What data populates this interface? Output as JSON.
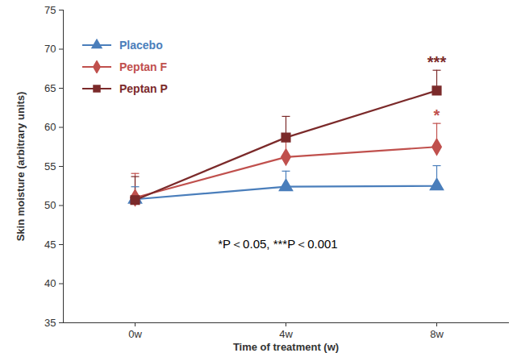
{
  "chart_data": {
    "type": "line",
    "x_label": "Time of treatment (w)",
    "y_label": "Skin moisture (arbitrary units)",
    "categories": [
      "0w",
      "4w",
      "8w"
    ],
    "ylim": [
      35,
      75
    ],
    "yticks": [
      35,
      40,
      45,
      50,
      55,
      60,
      65,
      70,
      75
    ],
    "legend": "top-left",
    "annotations": [
      "*P＜0.05, ***P＜0.001"
    ],
    "series": [
      {
        "name": "Placebo",
        "color": "#4a7ebb",
        "marker": "triangle",
        "values": [
          50.8,
          52.4,
          52.5
        ],
        "errors": [
          1.6,
          2.0,
          2.6
        ]
      },
      {
        "name": "Peptan F",
        "color": "#c0504d",
        "marker": "diamond",
        "values": [
          51.0,
          56.2,
          57.5
        ],
        "errors": [
          3.1,
          2.4,
          3.0
        ],
        "significance": [
          null,
          null,
          "*"
        ]
      },
      {
        "name": "Peptan P",
        "color": "#7b2a2a",
        "marker": "square",
        "values": [
          50.7,
          58.7,
          64.7
        ],
        "errors": [
          3.0,
          2.7,
          2.6
        ],
        "significance": [
          null,
          null,
          "***"
        ]
      }
    ]
  }
}
